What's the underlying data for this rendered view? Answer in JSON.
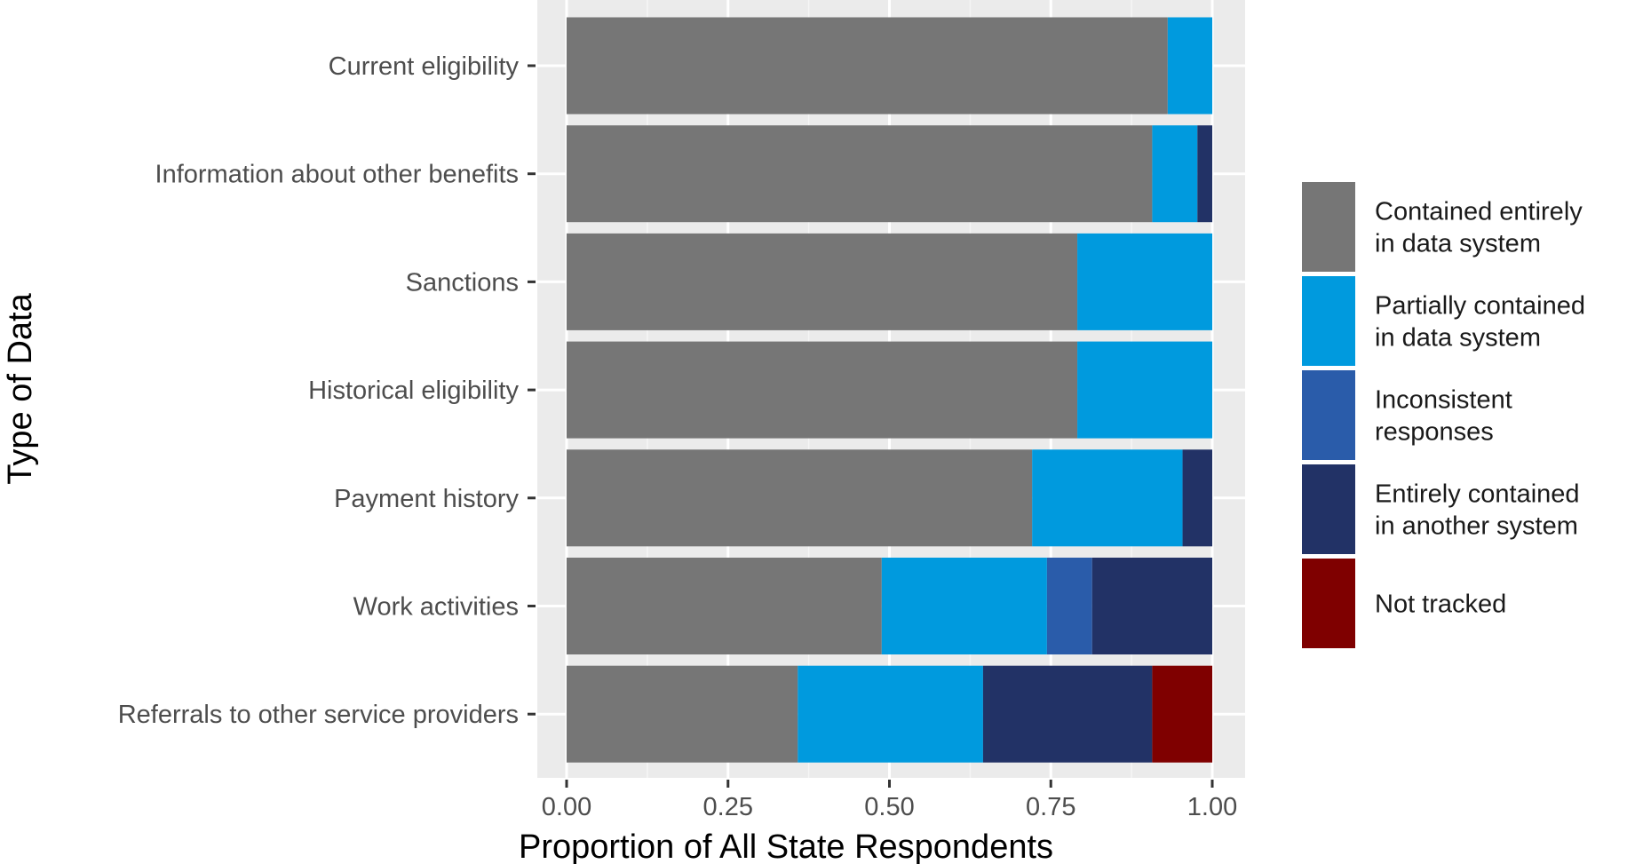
{
  "chart_data": {
    "type": "bar",
    "orientation": "horizontal",
    "stacked": true,
    "xlabel": "Proportion of All State Respondents",
    "ylabel": "Type of Data",
    "xlim": [
      0,
      1
    ],
    "xticks": [
      "0.00",
      "0.25",
      "0.50",
      "0.75",
      "1.00"
    ],
    "xtick_values": [
      0,
      0.25,
      0.5,
      0.75,
      1.0
    ],
    "grid": true,
    "legend_position": "right",
    "categories": [
      "Current eligibility",
      "Information about other benefits",
      "Sanctions",
      "Historical eligibility",
      "Payment history",
      "Work activities",
      "Referrals to other service providers"
    ],
    "series": [
      {
        "name": "Contained entirely in data system",
        "legend_lines": [
          "Contained entirely",
          "in data system"
        ],
        "color": "#767676",
        "values": [
          0.931,
          0.907,
          0.791,
          0.791,
          0.721,
          0.488,
          0.358
        ]
      },
      {
        "name": "Partially contained in data system",
        "legend_lines": [
          "Partially contained",
          "in data system"
        ],
        "color": "#009ADE",
        "values": [
          0.069,
          0.07,
          0.209,
          0.209,
          0.233,
          0.256,
          0.287
        ]
      },
      {
        "name": "Inconsistent responses",
        "legend_lines": [
          "Inconsistent",
          "responses"
        ],
        "color": "#2A5CAA",
        "values": [
          0,
          0,
          0,
          0,
          0,
          0.07,
          0
        ]
      },
      {
        "name": "Entirely contained in another system",
        "legend_lines": [
          "Entirely contained",
          "in another system"
        ],
        "color": "#223266",
        "values": [
          0,
          0.023,
          0,
          0,
          0.046,
          0.186,
          0.262
        ]
      },
      {
        "name": "Not tracked",
        "legend_lines": [
          "Not tracked"
        ],
        "color": "#7F0000",
        "values": [
          0,
          0,
          0,
          0,
          0,
          0,
          0.093
        ]
      }
    ]
  }
}
